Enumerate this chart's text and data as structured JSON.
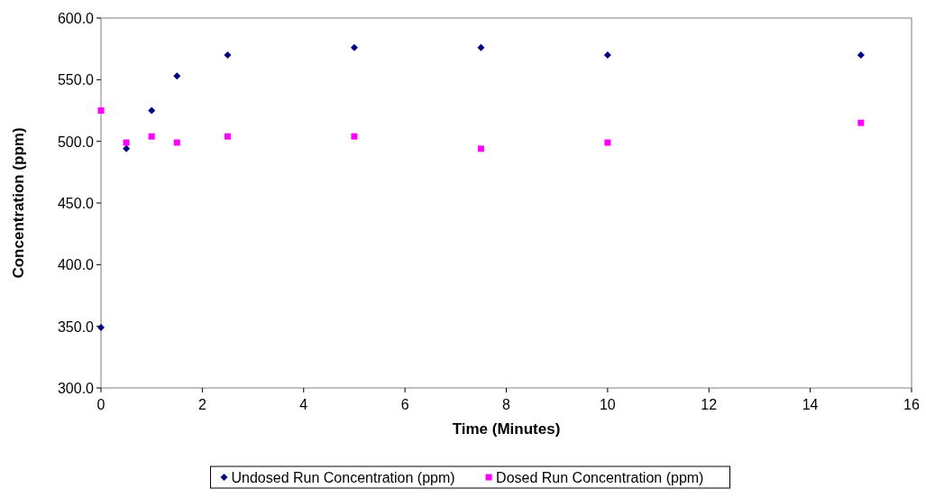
{
  "chart_data": {
    "type": "scatter",
    "xlabel": "Time (Minutes)",
    "ylabel": "Concentration (ppm)",
    "xlim": [
      0,
      16
    ],
    "xticks": [
      0,
      2,
      4,
      6,
      8,
      10,
      12,
      14,
      16
    ],
    "ylim": [
      300,
      600
    ],
    "yticks": [
      {
        "value": 300,
        "label": "300.0"
      },
      {
        "value": 350,
        "label": "350.0"
      },
      {
        "value": 400,
        "label": "400.0"
      },
      {
        "value": 450,
        "label": "450.0"
      },
      {
        "value": 500,
        "label": "500.0"
      },
      {
        "value": 550,
        "label": "550.0"
      },
      {
        "value": 600,
        "label": "600.0"
      }
    ],
    "x": [
      0,
      0.5,
      1,
      1.5,
      2.5,
      5,
      7.5,
      10,
      15
    ],
    "legend": "bottom",
    "grid": false,
    "series": [
      {
        "name": "Undosed Run Concentration (ppm)",
        "color": "#000080",
        "marker": "diamond",
        "values": [
          349,
          494,
          525,
          553,
          570,
          576,
          576,
          570,
          570
        ]
      },
      {
        "name": "Dosed Run Concentration (ppm)",
        "color": "#ff00ff",
        "marker": "square",
        "values": [
          525,
          499,
          504,
          499,
          504,
          504,
          494,
          499,
          515
        ]
      }
    ]
  }
}
